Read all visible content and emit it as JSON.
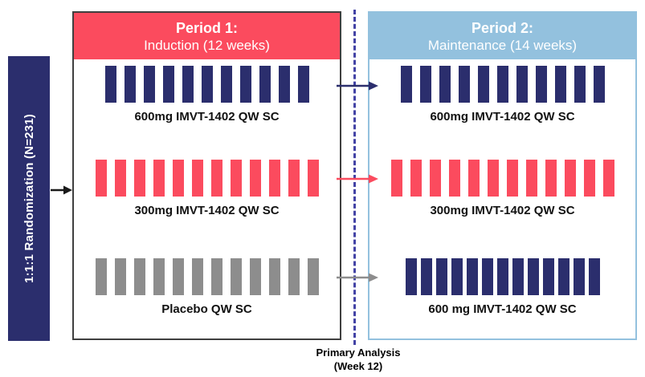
{
  "colors": {
    "navy": "#2b2e6d",
    "red": "#fb4b5e",
    "blue": "#93c1de",
    "gray": "#8d8d8d",
    "black": "#1a1a1a",
    "divider": "#4343a5"
  },
  "randomization": {
    "label": "1:1:1 Randomization (N=231)",
    "bar_color": "navy",
    "arrow_color": "black"
  },
  "period1": {
    "title": "Period 1:",
    "subtitle": "Induction (12 weeks)",
    "header_color": "red",
    "rows": [
      {
        "label": "600mg IMVT-1402 QW SC",
        "color": "navy",
        "ticks": 11
      },
      {
        "label": "300mg IMVT-1402 QW SC",
        "color": "red",
        "ticks": 12
      },
      {
        "label": "Placebo QW SC",
        "color": "gray",
        "ticks": 12
      }
    ]
  },
  "period2": {
    "title": "Period 2:",
    "subtitle": "Maintenance (14 weeks)",
    "header_color": "blue",
    "rows": [
      {
        "label": "600mg IMVT-1402 QW SC",
        "color": "navy",
        "ticks": 11
      },
      {
        "label": "300mg IMVT-1402 QW SC",
        "color": "red",
        "ticks": 12
      },
      {
        "label": "600 mg IMVT-1402 QW SC",
        "color": "navy",
        "ticks": 13
      }
    ]
  },
  "flow_arrows": [
    {
      "color": "navy"
    },
    {
      "color": "red"
    },
    {
      "color": "gray"
    }
  ],
  "primary_analysis": {
    "line1": "Primary Analysis",
    "line2": "(Week 12)"
  }
}
